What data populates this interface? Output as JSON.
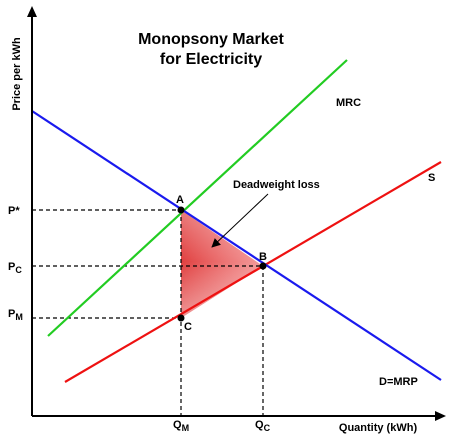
{
  "title_line1": "Monopsony Market",
  "title_line2": "for Electricity",
  "axes": {
    "y_label": "Price per kWh",
    "x_label": "Quantity (kWh)"
  },
  "curves": {
    "mrc": {
      "label": "MRC",
      "color": "#22cc22"
    },
    "supply": {
      "label": "S",
      "color": "#ee1111"
    },
    "demand": {
      "label": "D=MRP",
      "color": "#1a1aee"
    }
  },
  "points": {
    "a": "A",
    "b": "B",
    "c": "C"
  },
  "annotation": "Deadweight loss",
  "price_ticks": {
    "p_star": "P*",
    "p_c_main": "P",
    "p_c_sub": "C",
    "p_m_main": "P",
    "p_m_sub": "M"
  },
  "quantity_ticks": {
    "q_m_main": "Q",
    "q_m_sub": "M",
    "q_c_main": "Q",
    "q_c_sub": "C"
  },
  "colors": {
    "deadweight_fill": "#e03030",
    "axis": "#000000"
  }
}
